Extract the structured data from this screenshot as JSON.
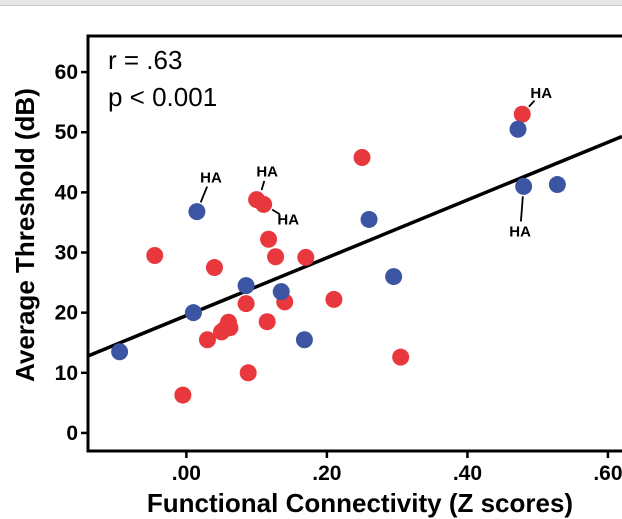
{
  "chart_data": {
    "type": "scatter",
    "xlabel": "Functional Connectivity (Z scores)",
    "ylabel": "Average Threshold (dB)",
    "xlim": [
      -0.14,
      0.62
    ],
    "ylim": [
      -3,
      66
    ],
    "xticks": [
      0.0,
      0.2,
      0.4,
      0.6
    ],
    "xtick_labels": [
      ".00",
      ".20",
      ".40",
      ".60"
    ],
    "yticks": [
      0,
      10,
      20,
      30,
      40,
      50,
      60
    ],
    "ytick_labels": [
      "0",
      "10",
      "20",
      "30",
      "40",
      "50",
      "60"
    ],
    "grid": false,
    "stats": [
      "r = .63",
      "p < 0.001"
    ],
    "colors": {
      "red": "#e8383d",
      "blue": "#3b55a3",
      "line": "#000000"
    },
    "series": [
      {
        "color_key": "red",
        "points": [
          [
            -0.045,
            29.5
          ],
          [
            -0.005,
            6.3
          ],
          [
            0.03,
            15.5
          ],
          [
            0.04,
            27.5
          ],
          [
            0.05,
            16.8
          ],
          [
            0.055,
            17.3
          ],
          [
            0.06,
            18.4
          ],
          [
            0.062,
            17.5
          ],
          [
            0.085,
            21.5
          ],
          [
            0.088,
            10.0
          ],
          [
            0.1,
            38.8
          ],
          [
            0.11,
            38.0
          ],
          [
            0.115,
            18.5
          ],
          [
            0.117,
            32.2
          ],
          [
            0.127,
            29.3
          ],
          [
            0.14,
            21.8
          ],
          [
            0.17,
            29.2
          ],
          [
            0.21,
            22.2
          ],
          [
            0.25,
            45.8
          ],
          [
            0.305,
            12.6
          ],
          [
            0.478,
            53.0
          ]
        ]
      },
      {
        "color_key": "blue",
        "points": [
          [
            -0.095,
            13.5
          ],
          [
            0.01,
            20.0
          ],
          [
            0.015,
            36.8
          ],
          [
            0.085,
            24.5
          ],
          [
            0.135,
            23.5
          ],
          [
            0.168,
            15.5
          ],
          [
            0.26,
            35.5
          ],
          [
            0.295,
            26.0
          ],
          [
            0.472,
            50.5
          ],
          [
            0.48,
            41.0
          ],
          [
            0.528,
            41.3
          ]
        ]
      }
    ],
    "trendline": {
      "x": [
        -0.14,
        0.62
      ],
      "y": [
        12.8,
        49.3
      ]
    },
    "annotations": [
      {
        "text": "HA",
        "x": 0.035,
        "y": 42.5,
        "target": [
          0.015,
          36.8
        ]
      },
      {
        "text": "HA",
        "x": 0.115,
        "y": 43.5,
        "target": [
          0.103,
          38.8
        ]
      },
      {
        "text": "HA",
        "x": 0.145,
        "y": 35.5,
        "target": [
          0.11,
          38.0
        ]
      },
      {
        "text": "HA",
        "x": 0.505,
        "y": 56.5,
        "target": [
          0.478,
          53.0
        ]
      },
      {
        "text": "HA",
        "x": 0.475,
        "y": 33.5,
        "target": [
          0.48,
          41.0
        ]
      }
    ]
  }
}
